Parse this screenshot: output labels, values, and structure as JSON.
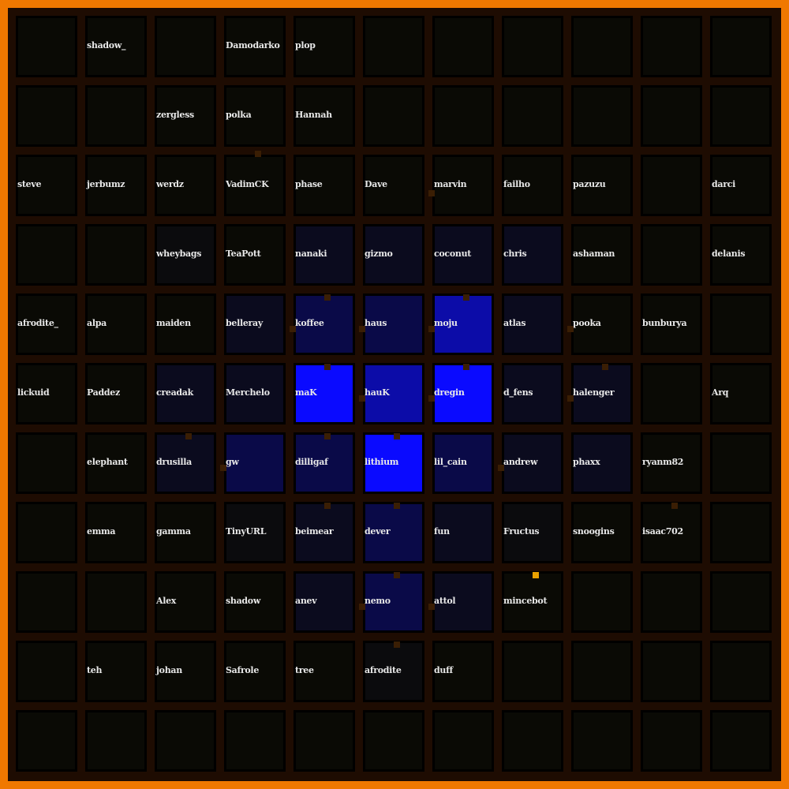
{
  "colors": {
    "border": "#f07800",
    "background": "#1e0c02",
    "d": "#0a0a05",
    "g": "#0b0b0d",
    "n1": "#0b0b1e",
    "n2": "#0a0a48",
    "n3": "#0c0ca8",
    "b": "#0a0aff",
    "connector": "#3a1e04",
    "connector_active": "#e8a000"
  },
  "grid": [
    [
      [
        "",
        ""
      ],
      [
        "shadow_",
        ""
      ],
      [
        "",
        ""
      ],
      [
        "Damodarko",
        ""
      ],
      [
        "plop",
        ""
      ],
      [
        "",
        ""
      ],
      [
        "",
        ""
      ],
      [
        "",
        ""
      ],
      [
        "",
        ""
      ],
      [
        "",
        ""
      ],
      [
        "",
        ""
      ]
    ],
    [
      [
        "",
        ""
      ],
      [
        "",
        ""
      ],
      [
        "zergless",
        ""
      ],
      [
        "polka",
        ""
      ],
      [
        "Hannah",
        ""
      ],
      [
        "",
        ""
      ],
      [
        "",
        ""
      ],
      [
        "",
        ""
      ],
      [
        "",
        ""
      ],
      [
        "",
        ""
      ],
      [
        "",
        ""
      ]
    ],
    [
      [
        "steve",
        ""
      ],
      [
        "jerbumz",
        ""
      ],
      [
        "werdz",
        ""
      ],
      [
        "VadimCK",
        ""
      ],
      [
        "phase",
        ""
      ],
      [
        "Dave",
        ""
      ],
      [
        "marvin",
        ""
      ],
      [
        "failho",
        ""
      ],
      [
        "pazuzu",
        ""
      ],
      [
        "",
        ""
      ],
      [
        "darci",
        ""
      ]
    ],
    [
      [
        "",
        ""
      ],
      [
        "",
        ""
      ],
      [
        "wheybags",
        "g"
      ],
      [
        "TeaPott",
        ""
      ],
      [
        "nanaki",
        "n1"
      ],
      [
        "gizmo",
        "n1"
      ],
      [
        "coconut",
        "n1"
      ],
      [
        "chris",
        "n1"
      ],
      [
        "ashaman",
        ""
      ],
      [
        "",
        ""
      ],
      [
        "delanis",
        ""
      ]
    ],
    [
      [
        "afrodite_",
        ""
      ],
      [
        "alpa",
        ""
      ],
      [
        "maiden",
        ""
      ],
      [
        "belleray",
        "n1"
      ],
      [
        "koffee",
        "n2"
      ],
      [
        "haus",
        "n2"
      ],
      [
        "moju",
        "n3"
      ],
      [
        "atlas",
        "n1"
      ],
      [
        "pooka",
        ""
      ],
      [
        "bunburya",
        ""
      ],
      [
        "",
        ""
      ]
    ],
    [
      [
        "lickuid",
        ""
      ],
      [
        "Paddez",
        ""
      ],
      [
        "creadak",
        "n1"
      ],
      [
        "Merchelo",
        "n1"
      ],
      [
        "maK",
        "b"
      ],
      [
        "hauK",
        "n3"
      ],
      [
        "dregin",
        "b"
      ],
      [
        "d_fens",
        "n1"
      ],
      [
        "halenger",
        "n1"
      ],
      [
        "",
        ""
      ],
      [
        "Arq",
        ""
      ]
    ],
    [
      [
        "",
        ""
      ],
      [
        "elephant",
        ""
      ],
      [
        "drusilla",
        "n1"
      ],
      [
        "gw",
        "n2"
      ],
      [
        "dilligaf",
        "n2"
      ],
      [
        "lithium",
        "b"
      ],
      [
        "lil_cain",
        "n2"
      ],
      [
        "andrew",
        "n1"
      ],
      [
        "phaxx",
        "n1"
      ],
      [
        "ryanm82",
        ""
      ],
      [
        "",
        ""
      ]
    ],
    [
      [
        "",
        ""
      ],
      [
        "emma",
        ""
      ],
      [
        "gamma",
        ""
      ],
      [
        "TinyURL",
        "g"
      ],
      [
        "beimear",
        "n1"
      ],
      [
        "dever",
        "n2"
      ],
      [
        "fun",
        "n1"
      ],
      [
        "Fructus",
        "g"
      ],
      [
        "snoogins",
        ""
      ],
      [
        "isaac702",
        ""
      ],
      [
        "",
        ""
      ]
    ],
    [
      [
        "",
        ""
      ],
      [
        "",
        ""
      ],
      [
        "Alex",
        ""
      ],
      [
        "shadow",
        ""
      ],
      [
        "anev",
        "n1"
      ],
      [
        "nemo",
        "n2"
      ],
      [
        "attol",
        "n1"
      ],
      [
        "mincebot",
        ""
      ],
      [
        "",
        ""
      ],
      [
        "",
        ""
      ],
      [
        "",
        ""
      ]
    ],
    [
      [
        "",
        ""
      ],
      [
        "teh",
        ""
      ],
      [
        "johan",
        ""
      ],
      [
        "Safrole",
        ""
      ],
      [
        "tree",
        ""
      ],
      [
        "afrodite",
        "g"
      ],
      [
        "duff",
        ""
      ],
      [
        "",
        ""
      ],
      [
        "",
        ""
      ],
      [
        "",
        ""
      ],
      [
        "",
        ""
      ]
    ],
    [
      [
        "",
        ""
      ],
      [
        "",
        ""
      ],
      [
        "",
        ""
      ],
      [
        "",
        ""
      ],
      [
        "",
        ""
      ],
      [
        "",
        ""
      ],
      [
        "",
        ""
      ],
      [
        "",
        ""
      ],
      [
        "",
        ""
      ],
      [
        "",
        ""
      ],
      [
        "",
        ""
      ]
    ]
  ]
}
